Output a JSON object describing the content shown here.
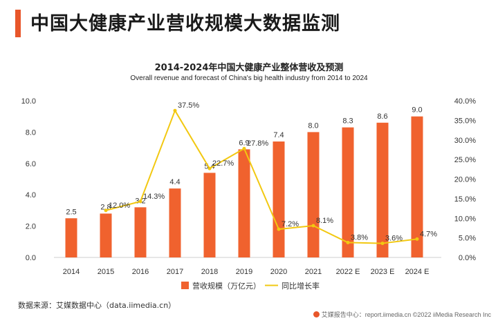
{
  "header": {
    "title": "中国大健康产业营收规模大数据监测"
  },
  "chart_data": {
    "type": "bar+line",
    "title": "2014-2024年中国大健康产业整体营收及预测",
    "subtitle": "Overall revenue and forecast of China's big health industry from 2014 to 2024",
    "categories": [
      "2014",
      "2015",
      "2016",
      "2017",
      "2018",
      "2019",
      "2020",
      "2021",
      "2022 E",
      "2023 E",
      "2024 E"
    ],
    "series": [
      {
        "name": "营收规模（万亿元）",
        "type": "bar",
        "axis": "left",
        "color": "#f0622e",
        "values": [
          2.5,
          2.8,
          3.2,
          4.4,
          5.4,
          6.9,
          7.4,
          8.0,
          8.3,
          8.6,
          9.0
        ],
        "labels": [
          "2.5",
          "2.8",
          "3.2",
          "4.4",
          "5.4",
          "6.9",
          "7.4",
          "8.0",
          "8.3",
          "8.6",
          "9.0"
        ]
      },
      {
        "name": "同比增长率",
        "type": "line",
        "axis": "right",
        "color": "#f2c811",
        "values": [
          null,
          12.0,
          14.3,
          37.5,
          22.7,
          27.8,
          7.2,
          8.1,
          3.8,
          3.6,
          4.7
        ],
        "labels": [
          "",
          "12.0%",
          "14.3%",
          "37.5%",
          "22.7%",
          "27.8%",
          "7.2%",
          "8.1%",
          "3.8%",
          "3.6%",
          "4.7%"
        ]
      }
    ],
    "left_axis": {
      "min": 0,
      "max": 10,
      "ticks": [
        "0.0",
        "2.0",
        "4.0",
        "6.0",
        "8.0",
        "10.0"
      ]
    },
    "right_axis": {
      "min": 0,
      "max": 40,
      "ticks": [
        "0.0%",
        "5.0%",
        "10.0%",
        "15.0%",
        "20.0%",
        "25.0%",
        "30.0%",
        "35.0%",
        "40.0%"
      ]
    },
    "grid": false,
    "legend_position": "bottom"
  },
  "source": "数据来源：艾媒数据中心（data.iimedia.cn）",
  "footer": "艾媒报告中心：report.iimedia.cn  ©2022  iiMedia Research  Inc"
}
